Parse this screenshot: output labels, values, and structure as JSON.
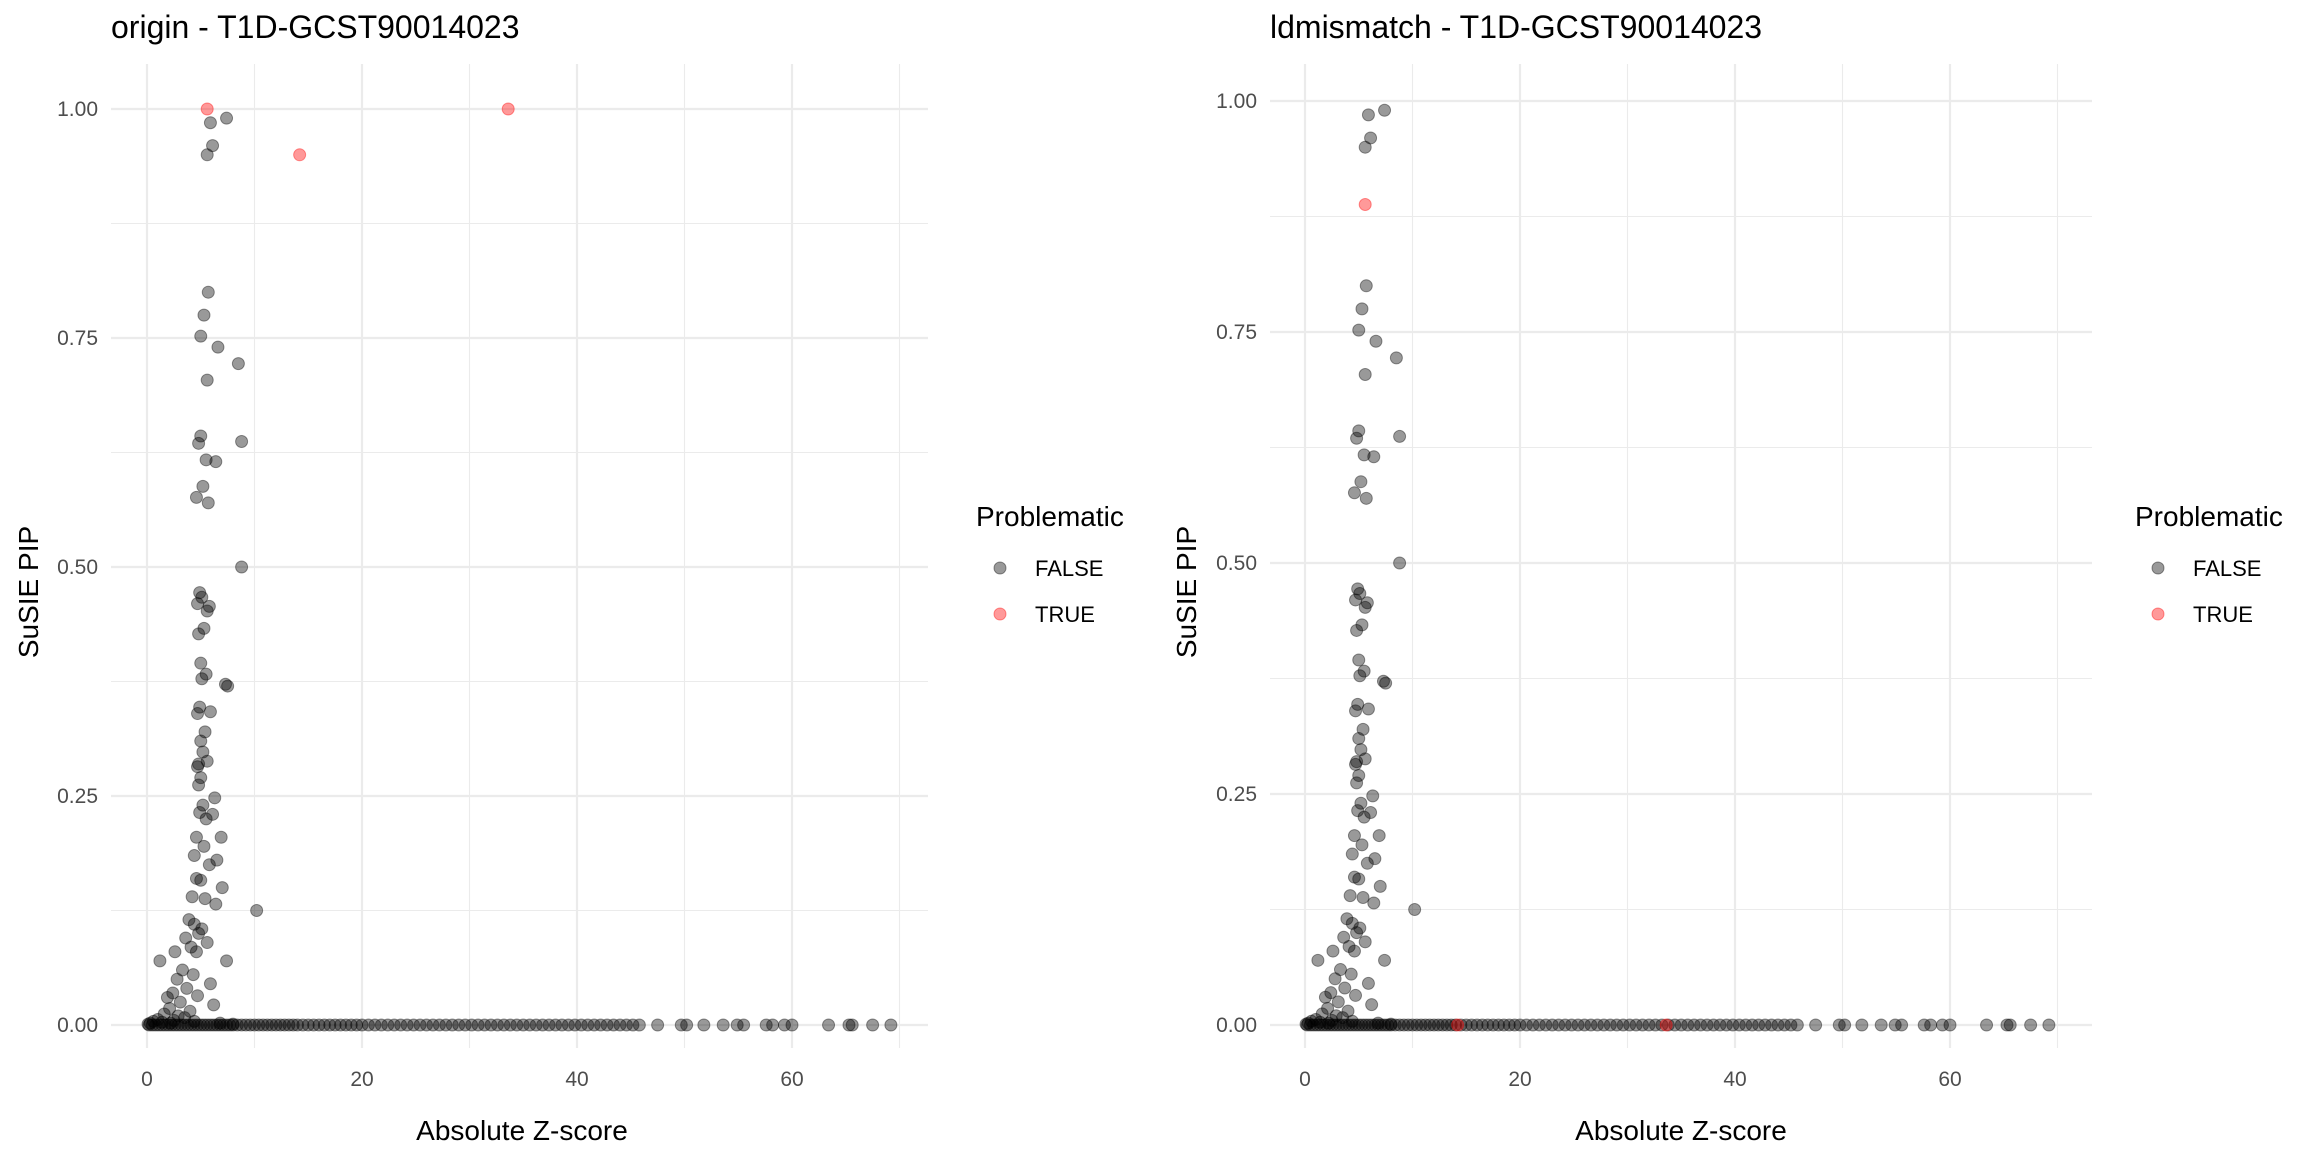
{
  "chart_data": [
    {
      "type": "scatter",
      "title": "origin - T1D-GCST90014023",
      "xlabel": "Absolute Z-score",
      "ylabel": "SuSIE PIP",
      "xlim": [
        -3.5,
        72.8
      ],
      "ylim": [
        -0.05,
        1.05
      ],
      "x_ticks": [
        0,
        20,
        40,
        60
      ],
      "x_tick_labels": [
        "0",
        "20",
        "40",
        "60"
      ],
      "y_ticks": [
        0,
        0.25,
        0.5,
        0.75,
        1.0
      ],
      "y_tick_labels": [
        "0.00",
        "0.25",
        "0.50",
        "0.75",
        "1.00"
      ],
      "grid": true,
      "legend": {
        "title": "Problematic",
        "position": "right",
        "entries": [
          "FALSE",
          "TRUE"
        ]
      },
      "series": [
        {
          "name": "FALSE",
          "color": "#000000",
          "opacity": 0.4,
          "points": [
            [
              7.4,
              0.99
            ],
            [
              5.9,
              0.985
            ],
            [
              6.1,
              0.96
            ],
            [
              5.6,
              0.95
            ],
            [
              5.7,
              0.8
            ],
            [
              5.3,
              0.775
            ],
            [
              5.0,
              0.752
            ],
            [
              6.6,
              0.74
            ],
            [
              8.5,
              0.722
            ],
            [
              5.6,
              0.704
            ],
            [
              5.0,
              0.643
            ],
            [
              4.8,
              0.635
            ],
            [
              8.8,
              0.637
            ],
            [
              5.5,
              0.617
            ],
            [
              6.4,
              0.615
            ],
            [
              5.2,
              0.588
            ],
            [
              4.6,
              0.576
            ],
            [
              5.7,
              0.57
            ],
            [
              8.8,
              0.5
            ],
            [
              4.9,
              0.472
            ],
            [
              5.1,
              0.467
            ],
            [
              4.7,
              0.46
            ],
            [
              5.8,
              0.457
            ],
            [
              5.6,
              0.452
            ],
            [
              5.3,
              0.433
            ],
            [
              4.8,
              0.427
            ],
            [
              5.0,
              0.395
            ],
            [
              5.5,
              0.383
            ],
            [
              5.1,
              0.378
            ],
            [
              7.3,
              0.372
            ],
            [
              7.5,
              0.37
            ],
            [
              4.9,
              0.347
            ],
            [
              4.7,
              0.34
            ],
            [
              5.9,
              0.342
            ],
            [
              5.4,
              0.32
            ],
            [
              5.0,
              0.31
            ],
            [
              5.2,
              0.298
            ],
            [
              4.8,
              0.285
            ],
            [
              4.7,
              0.282
            ],
            [
              5.6,
              0.288
            ],
            [
              5.0,
              0.27
            ],
            [
              4.8,
              0.262
            ],
            [
              6.3,
              0.248
            ],
            [
              5.2,
              0.24
            ],
            [
              4.9,
              0.232
            ],
            [
              6.1,
              0.23
            ],
            [
              5.5,
              0.225
            ],
            [
              4.6,
              0.205
            ],
            [
              5.3,
              0.195
            ],
            [
              6.9,
              0.205
            ],
            [
              4.4,
              0.185
            ],
            [
              6.5,
              0.18
            ],
            [
              5.8,
              0.175
            ],
            [
              4.6,
              0.16
            ],
            [
              5.0,
              0.158
            ],
            [
              7.0,
              0.15
            ],
            [
              4.2,
              0.14
            ],
            [
              5.4,
              0.138
            ],
            [
              6.4,
              0.132
            ],
            [
              10.2,
              0.125
            ],
            [
              3.9,
              0.115
            ],
            [
              4.4,
              0.11
            ],
            [
              5.1,
              0.105
            ],
            [
              4.8,
              0.1
            ],
            [
              3.6,
              0.095
            ],
            [
              5.6,
              0.09
            ],
            [
              4.1,
              0.085
            ],
            [
              4.6,
              0.08
            ],
            [
              2.6,
              0.08
            ],
            [
              7.4,
              0.07
            ],
            [
              1.2,
              0.07
            ],
            [
              3.3,
              0.06
            ],
            [
              4.3,
              0.055
            ],
            [
              2.8,
              0.05
            ],
            [
              5.9,
              0.045
            ],
            [
              3.7,
              0.04
            ],
            [
              2.4,
              0.035
            ],
            [
              4.7,
              0.032
            ],
            [
              1.9,
              0.03
            ],
            [
              3.1,
              0.025
            ],
            [
              6.2,
              0.022
            ],
            [
              2.1,
              0.018
            ],
            [
              4.0,
              0.015
            ],
            [
              1.6,
              0.012
            ],
            [
              2.9,
              0.01
            ],
            [
              3.5,
              0.008
            ],
            [
              1.0,
              0.006
            ],
            [
              2.5,
              0.005
            ],
            [
              0.6,
              0.004
            ],
            [
              4.4,
              0.004
            ],
            [
              1.4,
              0.003
            ],
            [
              0.3,
              0.002
            ],
            [
              2.2,
              0.002
            ],
            [
              0.1,
              0.001
            ],
            [
              6.8,
              0.002
            ],
            [
              8.0,
              0.001
            ]
          ]
        },
        {
          "name": "TRUE",
          "color": "#ff0000",
          "opacity": 0.4,
          "points": [
            [
              5.6,
              1.0
            ],
            [
              14.2,
              0.95
            ],
            [
              33.6,
              1.0
            ]
          ]
        }
      ]
    },
    {
      "type": "scatter",
      "title": "ldmismatch - T1D-GCST90014023",
      "xlabel": "Absolute Z-score",
      "ylabel": "SuSIE PIP",
      "xlim": [
        -3.5,
        72.8
      ],
      "ylim": [
        -0.05,
        1.04
      ],
      "x_ticks": [
        0,
        20,
        40,
        60
      ],
      "x_tick_labels": [
        "0",
        "20",
        "40",
        "60"
      ],
      "y_ticks": [
        0,
        0.25,
        0.5,
        0.75,
        1.0
      ],
      "y_tick_labels": [
        "0.00",
        "0.25",
        "0.50",
        "0.75",
        "1.00"
      ],
      "grid": true,
      "legend": {
        "title": "Problematic",
        "position": "right",
        "entries": [
          "FALSE",
          "TRUE"
        ]
      },
      "series": [
        {
          "name": "FALSE",
          "color": "#000000",
          "opacity": 0.4,
          "points": [
            [
              7.4,
              0.99
            ],
            [
              5.9,
              0.985
            ],
            [
              6.1,
              0.96
            ],
            [
              5.6,
              0.95
            ],
            [
              5.7,
              0.8
            ],
            [
              5.3,
              0.775
            ],
            [
              5.0,
              0.752
            ],
            [
              6.6,
              0.74
            ],
            [
              8.5,
              0.722
            ],
            [
              5.6,
              0.704
            ],
            [
              5.0,
              0.643
            ],
            [
              4.8,
              0.635
            ],
            [
              8.8,
              0.637
            ],
            [
              5.5,
              0.617
            ],
            [
              6.4,
              0.615
            ],
            [
              5.2,
              0.588
            ],
            [
              4.6,
              0.576
            ],
            [
              5.7,
              0.57
            ],
            [
              8.8,
              0.5
            ],
            [
              4.9,
              0.472
            ],
            [
              5.1,
              0.467
            ],
            [
              4.7,
              0.46
            ],
            [
              5.8,
              0.457
            ],
            [
              5.6,
              0.452
            ],
            [
              5.3,
              0.433
            ],
            [
              4.8,
              0.427
            ],
            [
              5.0,
              0.395
            ],
            [
              5.5,
              0.383
            ],
            [
              5.1,
              0.378
            ],
            [
              7.3,
              0.372
            ],
            [
              7.5,
              0.37
            ],
            [
              4.9,
              0.347
            ],
            [
              4.7,
              0.34
            ],
            [
              5.9,
              0.342
            ],
            [
              5.4,
              0.32
            ],
            [
              5.0,
              0.31
            ],
            [
              5.2,
              0.298
            ],
            [
              4.8,
              0.285
            ],
            [
              4.7,
              0.282
            ],
            [
              5.6,
              0.288
            ],
            [
              5.0,
              0.27
            ],
            [
              4.8,
              0.262
            ],
            [
              6.3,
              0.248
            ],
            [
              5.2,
              0.24
            ],
            [
              4.9,
              0.232
            ],
            [
              6.1,
              0.23
            ],
            [
              5.5,
              0.225
            ],
            [
              4.6,
              0.205
            ],
            [
              5.3,
              0.195
            ],
            [
              6.9,
              0.205
            ],
            [
              4.4,
              0.185
            ],
            [
              6.5,
              0.18
            ],
            [
              5.8,
              0.175
            ],
            [
              4.6,
              0.16
            ],
            [
              5.0,
              0.158
            ],
            [
              7.0,
              0.15
            ],
            [
              4.2,
              0.14
            ],
            [
              5.4,
              0.138
            ],
            [
              6.4,
              0.132
            ],
            [
              10.2,
              0.125
            ],
            [
              3.9,
              0.115
            ],
            [
              4.4,
              0.11
            ],
            [
              5.1,
              0.105
            ],
            [
              4.8,
              0.1
            ],
            [
              3.6,
              0.095
            ],
            [
              5.6,
              0.09
            ],
            [
              4.1,
              0.085
            ],
            [
              4.6,
              0.08
            ],
            [
              2.6,
              0.08
            ],
            [
              7.4,
              0.07
            ],
            [
              1.2,
              0.07
            ],
            [
              3.3,
              0.06
            ],
            [
              4.3,
              0.055
            ],
            [
              2.8,
              0.05
            ],
            [
              5.9,
              0.045
            ],
            [
              3.7,
              0.04
            ],
            [
              2.4,
              0.035
            ],
            [
              4.7,
              0.032
            ],
            [
              1.9,
              0.03
            ],
            [
              3.1,
              0.025
            ],
            [
              6.2,
              0.022
            ],
            [
              2.1,
              0.018
            ],
            [
              4.0,
              0.015
            ],
            [
              1.6,
              0.012
            ],
            [
              2.9,
              0.01
            ],
            [
              3.5,
              0.008
            ],
            [
              1.0,
              0.006
            ],
            [
              2.5,
              0.005
            ],
            [
              0.6,
              0.004
            ],
            [
              4.4,
              0.004
            ],
            [
              1.4,
              0.003
            ],
            [
              0.3,
              0.002
            ],
            [
              2.2,
              0.002
            ],
            [
              0.1,
              0.001
            ],
            [
              6.8,
              0.002
            ],
            [
              8.0,
              0.001
            ]
          ]
        },
        {
          "name": "TRUE",
          "color": "#ff0000",
          "opacity": 0.4,
          "points": [
            [
              5.6,
              0.888
            ],
            [
              14.2,
              0.0
            ],
            [
              33.6,
              0.0
            ]
          ]
        }
      ]
    }
  ],
  "baseline_x_values": [
    0.2,
    0.5,
    0.8,
    1.1,
    1.4,
    1.7,
    2.0,
    2.3,
    2.6,
    2.9,
    3.2,
    3.5,
    3.8,
    4.1,
    4.4,
    4.7,
    5.0,
    5.3,
    5.6,
    5.9,
    6.2,
    6.5,
    6.8,
    7.1,
    7.4,
    7.7,
    8.0,
    8.4,
    8.8,
    9.2,
    9.6,
    10.0,
    10.4,
    10.8,
    11.2,
    11.6,
    12.0,
    12.4,
    12.8,
    13.2,
    13.6,
    14.0,
    14.5,
    15.0,
    15.5,
    16.0,
    16.5,
    17.0,
    17.5,
    18.0,
    18.5,
    19.0,
    19.5,
    20.0,
    20.6,
    21.2,
    21.8,
    22.4,
    23.0,
    23.6,
    24.2,
    24.8,
    25.4,
    26.0,
    26.6,
    27.2,
    27.8,
    28.4,
    29.0,
    29.6,
    30.2,
    30.8,
    31.4,
    32.0,
    32.6,
    33.2,
    33.8,
    34.4,
    35.0,
    35.6,
    36.2,
    36.8,
    37.4,
    38.0,
    38.6,
    39.2,
    39.8,
    40.4,
    41.0,
    41.6,
    42.2,
    42.8,
    43.4,
    44.0,
    44.6,
    45.2,
    45.8,
    47.5,
    49.7,
    50.2,
    51.8,
    53.6,
    54.9,
    55.5,
    57.6,
    58.2,
    59.3,
    60.0,
    63.4,
    65.3,
    65.6,
    67.5,
    69.2
  ]
}
